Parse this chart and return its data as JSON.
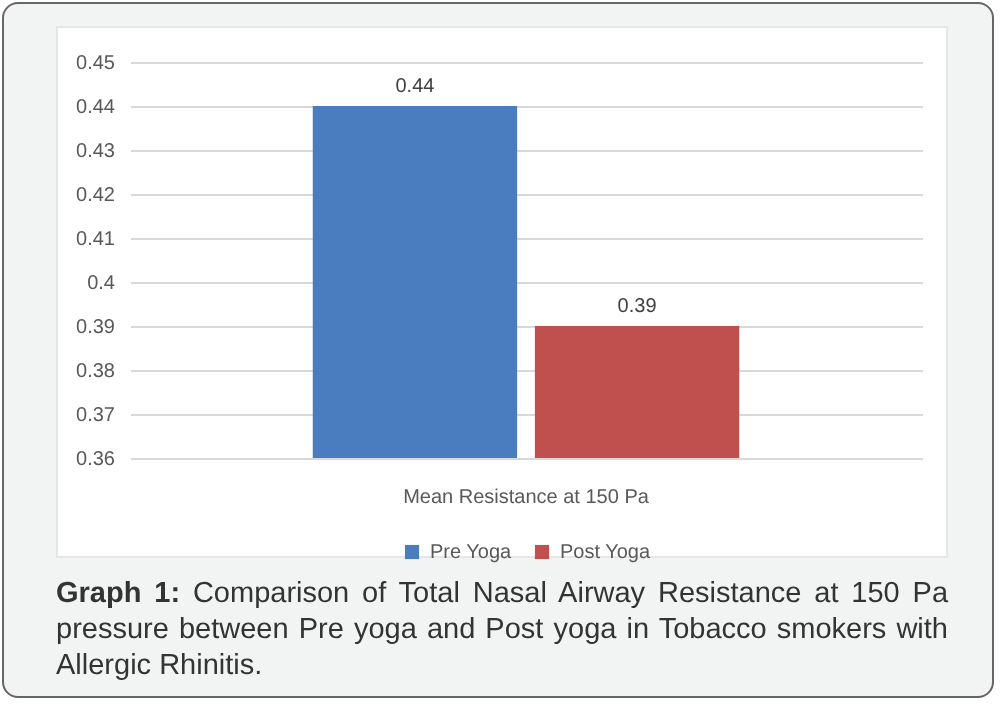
{
  "chart_data": {
    "type": "bar",
    "categories": [
      "Mean Resistance at 150 Pa"
    ],
    "series": [
      {
        "name": "Pre Yoga",
        "color": "#4a7cc0",
        "values": [
          0.44
        ]
      },
      {
        "name": "Post Yoga",
        "color": "#c0504d",
        "values": [
          0.39
        ]
      }
    ],
    "ylim": [
      0.36,
      0.45
    ],
    "yticks": [
      0.36,
      0.37,
      0.38,
      0.39,
      0.4,
      0.41,
      0.42,
      0.43,
      0.44,
      0.45
    ],
    "grid": "y",
    "legend": "bottom",
    "data_labels": true,
    "annotations": [
      "Graph 1: Comparison of Total Nasal Airway Resistance at 150 Pa pressure between Pre yoga and Post yoga in Tobacco smokers with Allergic Rhinitis."
    ]
  }
}
